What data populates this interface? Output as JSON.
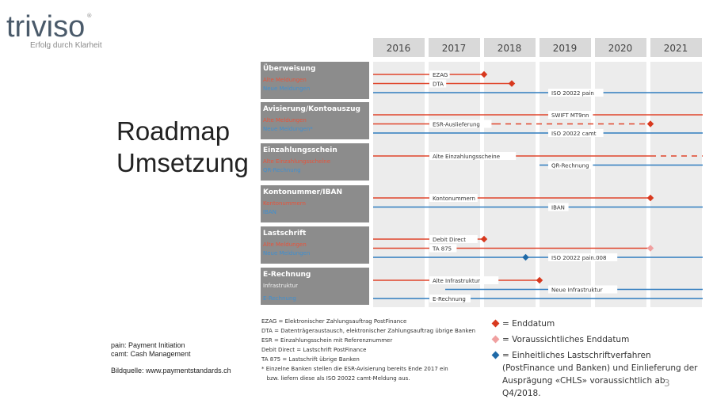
{
  "logo": {
    "name": "triviso",
    "registered": "®",
    "tagline": "Erfolg durch Klarheit"
  },
  "title": [
    "Roadmap",
    "Umsetzung"
  ],
  "notes": {
    "line1": "pain: Payment Initiation",
    "line2": "camt: Cash Management",
    "source": "Bildquelle: www.paymentstandards.ch"
  },
  "page_number": "3",
  "colors": {
    "red": "#e0452b",
    "blue": "#2f7cbf",
    "pink": "#f0a0a0",
    "darkred": "#d8391e",
    "darkblue": "#1f6aa8",
    "header_bg": "#d9d9d9",
    "col_bg": "#ececec",
    "label_bg": "#8c8c8c"
  },
  "years": [
    "2016",
    "2017",
    "2018",
    "2019",
    "2020",
    "2021"
  ],
  "groups": [
    {
      "title": "Überweisung",
      "sub": [
        {
          "text": "Alte Meldungen",
          "color": "red"
        },
        {
          "text": "Neue Meldungen",
          "color": "blue"
        }
      ],
      "lines": [
        {
          "label": "EZAG",
          "color": "red",
          "start": 2016,
          "end": 2018,
          "marker": "end"
        },
        {
          "label": "DTA",
          "color": "red",
          "start": 2016,
          "end": 2018.5,
          "marker": "end"
        },
        {
          "label": "ISO 20022 pain",
          "color": "blue",
          "start": 2016,
          "end": 2022,
          "labelAt": 2019.2
        }
      ]
    },
    {
      "title": "Avisierung/Kontoauszug",
      "sub": [
        {
          "text": "Alte Meldungen",
          "color": "red"
        },
        {
          "text": "Neue Meldungen*",
          "color": "blue"
        }
      ],
      "lines": [
        {
          "label": "SWIFT MT9nn",
          "color": "red",
          "start": 2016,
          "end": 2022,
          "labelAt": 2019.2
        },
        {
          "label": "ESR-Auslieferung",
          "color": "red",
          "start": 2016,
          "end": 2021,
          "dashFrom": 2018.2,
          "marker": "end"
        },
        {
          "label": "ISO 20022 camt",
          "color": "blue",
          "start": 2016,
          "end": 2022,
          "labelAt": 2019.2
        }
      ]
    },
    {
      "title": "Einzahlungsschein",
      "sub": [
        {
          "text": "Alte Einzahlungsscheine",
          "color": "red"
        },
        {
          "text": "QR-Rechnung",
          "color": "blue"
        }
      ],
      "lines": [
        {
          "label": "Alte Einzahlungsscheine",
          "color": "red",
          "start": 2016,
          "end": 2022,
          "dashFrom": 2021
        },
        {
          "label": "QR-Rechnung",
          "color": "blue",
          "start": 2019,
          "end": 2022,
          "labelAt": 2019.2
        }
      ]
    },
    {
      "title": "Kontonummer/IBAN",
      "sub": [
        {
          "text": "Kontonummern",
          "color": "red"
        },
        {
          "text": "IBAN",
          "color": "blue"
        }
      ],
      "lines": [
        {
          "label": "Kontonummern",
          "color": "red",
          "start": 2016,
          "end": 2021,
          "marker": "end"
        },
        {
          "label": "IBAN",
          "color": "blue",
          "start": 2016,
          "end": 2022,
          "labelAt": 2019.2
        }
      ]
    },
    {
      "title": "Lastschrift",
      "sub": [
        {
          "text": "Alte Meldungen",
          "color": "red"
        },
        {
          "text": "Neue Meldungen",
          "color": "blue"
        }
      ],
      "lines": [
        {
          "label": "Debit Direct",
          "color": "red",
          "start": 2016,
          "end": 2018,
          "marker": "end"
        },
        {
          "label": "TA 875",
          "color": "red",
          "start": 2016,
          "end": 2021,
          "marker": "end-pink"
        },
        {
          "label": "ISO 20022 pain.008",
          "color": "blue",
          "start": 2016,
          "end": 2022,
          "labelAt": 2019.2,
          "blueMarker": 2018.75
        }
      ]
    },
    {
      "title": "E-Rechnung",
      "sub": [
        {
          "text": "Infrastruktur",
          "color": "white"
        },
        {
          "text": "E-Rechnung",
          "color": "blue"
        }
      ],
      "lines": [
        {
          "label": "Alte Infrastruktur",
          "color": "red",
          "start": 2016,
          "end": 2019,
          "marker": "end"
        },
        {
          "label": "Neue Infrastruktur",
          "color": "blue",
          "start": 2017.3,
          "end": 2022,
          "labelAt": 2019.2
        },
        {
          "label": "E-Rechnung",
          "color": "blue",
          "start": 2016,
          "end": 2022
        }
      ]
    }
  ],
  "abbreviations": [
    "EZAG = Elektronischer Zahlungsauftrag PostFinance",
    "DTA = Datenträgeraustausch, elektronischer Zahlungsauftrag übrige Banken",
    "ESR = Einzahlungsschein mit Referenznummer",
    "Debit Direct = Lastschrift PostFinance",
    "TA 875 = Lastschrift übrige Banken",
    "* Einzelne Banken stellen die ESR-Avisierung bereits Ende 2017 ein",
    "   bzw. liefern diese als ISO 20022 camt-Meldung aus."
  ],
  "legend": [
    {
      "color": "darkred",
      "text": "= Enddatum"
    },
    {
      "color": "pink",
      "text": "= Voraussichtliches Enddatum"
    },
    {
      "color": "darkblue",
      "text": "= Einheitliches Lastschriftverfahren (PostFinance und Banken) und Einlieferung der Ausprägung «CHLS» voraussichtlich ab Q4/2018."
    }
  ]
}
